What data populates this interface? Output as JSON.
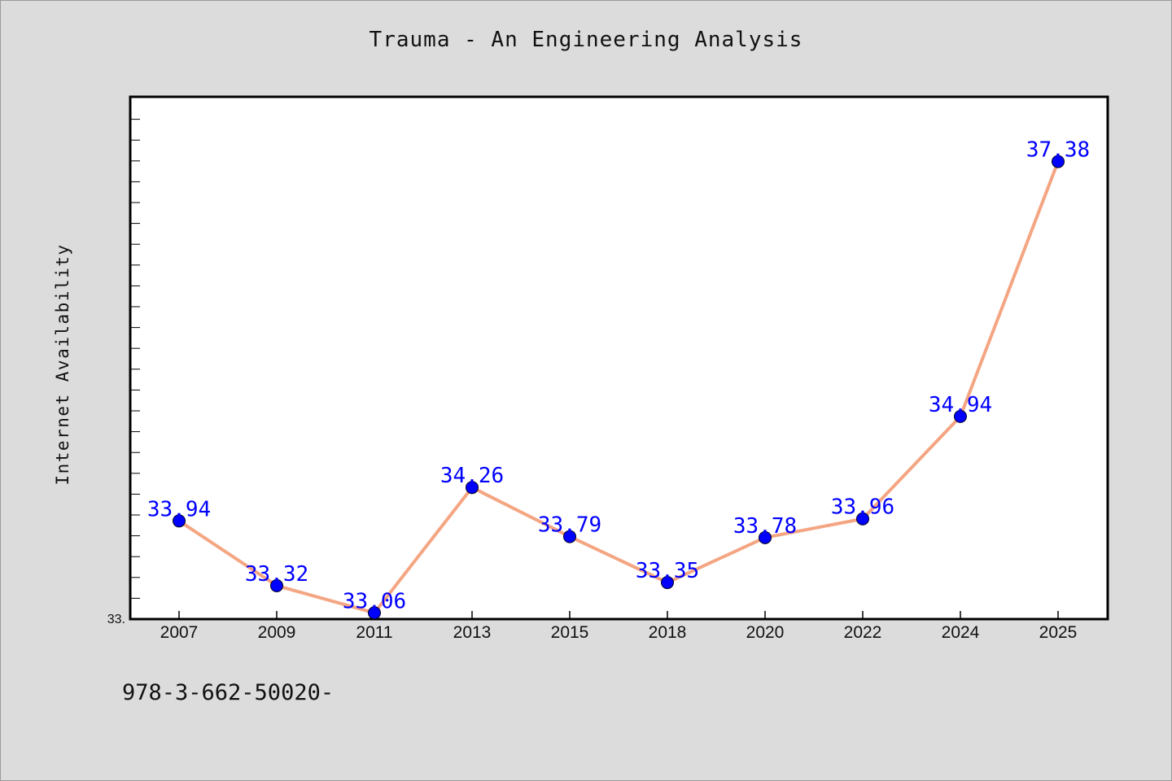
{
  "chart_data": {
    "type": "line",
    "title": "Trauma - An Engineering Analysis",
    "xlabel": "",
    "ylabel": "Internet Availability",
    "y_tick_label": "33.",
    "categories": [
      "2007",
      "2009",
      "2011",
      "2013",
      "2015",
      "2018",
      "2020",
      "2022",
      "2024",
      "2025"
    ],
    "values": [
      33.94,
      33.32,
      33.06,
      34.26,
      33.79,
      33.35,
      33.78,
      33.96,
      34.94,
      37.38
    ],
    "data_labels": [
      "33.94",
      "33.32",
      "33.06",
      "34.26",
      "33.79",
      "33.35",
      "33.78",
      "33.96",
      "34.94",
      "37.38"
    ],
    "ylim": [
      33.0,
      38.0
    ],
    "grid": false,
    "legend": "none",
    "line_color": "#f4a582",
    "marker_color": "#0000ff",
    "label_color": "#0000ff"
  },
  "footer": {
    "code": "978-3-662-50020-"
  }
}
